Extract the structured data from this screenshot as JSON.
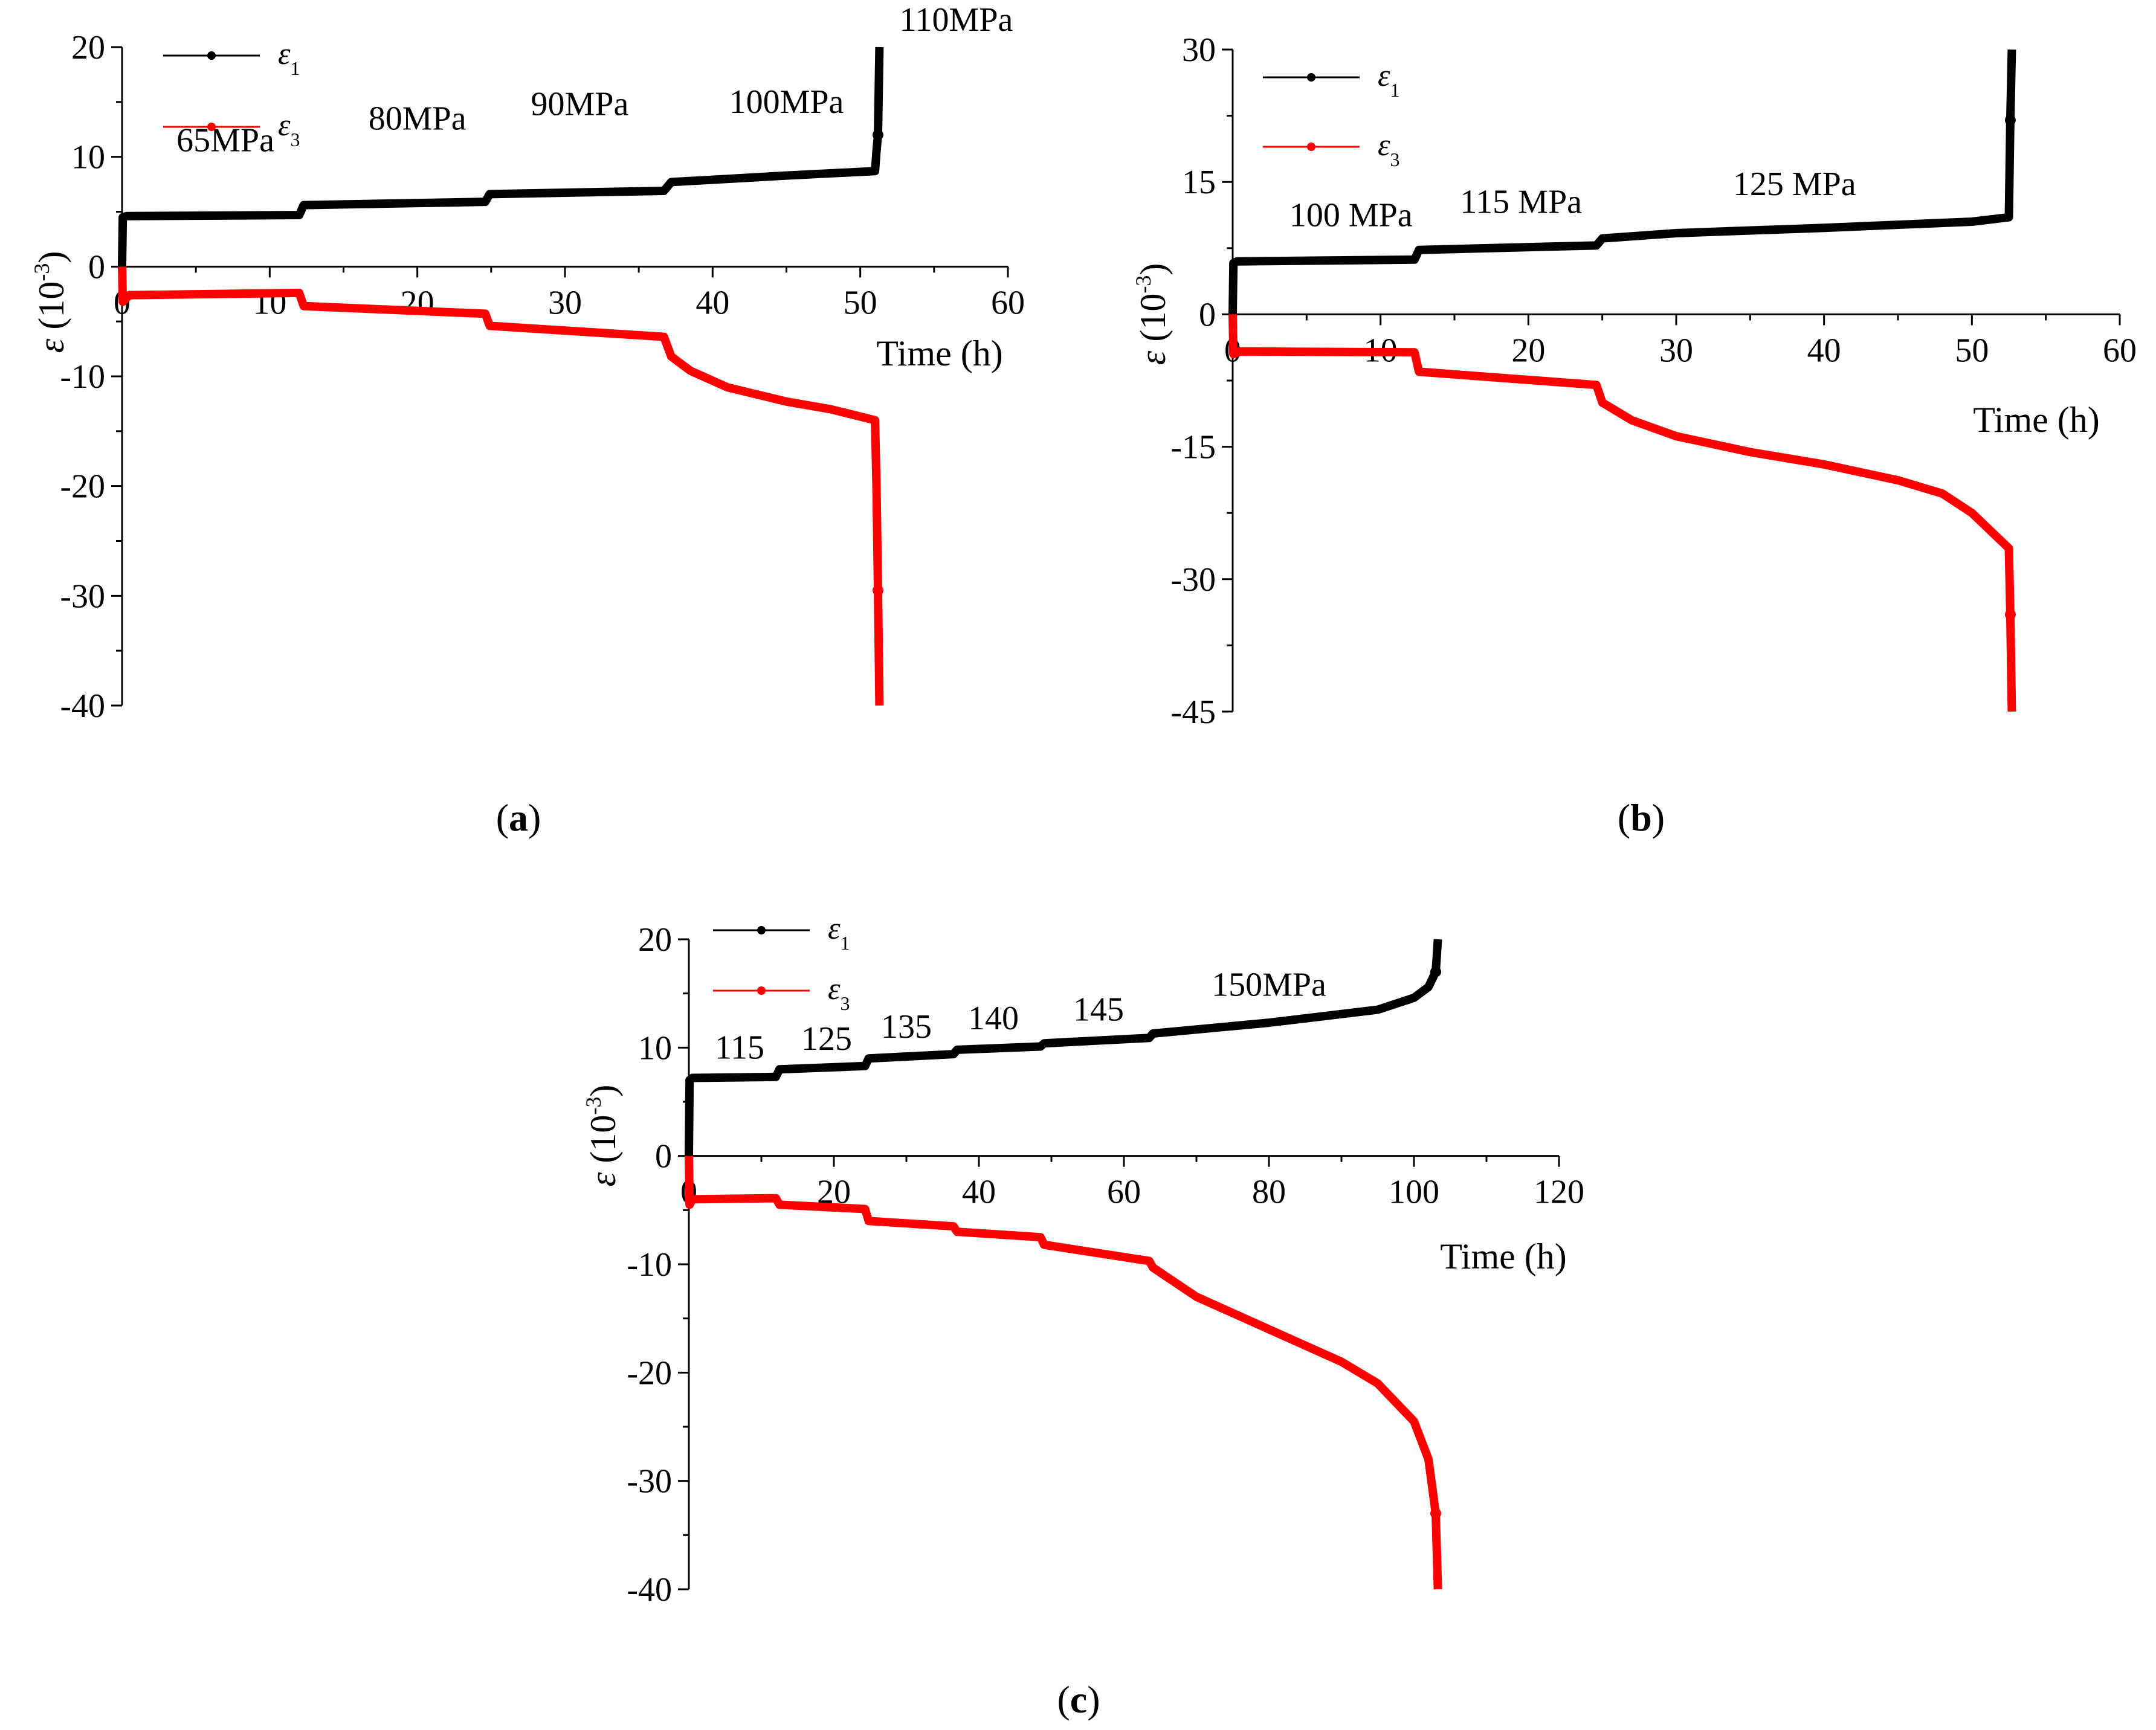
{
  "chart_data": [
    {
      "type": "line",
      "panel": "a",
      "caption_letter": "a",
      "xlabel": "Time (h)",
      "ylabel_symbol": "ε",
      "ylabel_unit_base": " (10",
      "ylabel_unit_exp": "-3",
      "ylabel_unit_close": ")",
      "xlim": [
        0,
        60
      ],
      "ylim": [
        -40,
        20
      ],
      "xticks": [
        0,
        10,
        20,
        30,
        40,
        50,
        60
      ],
      "yticks": [
        -40,
        -30,
        -20,
        -10,
        0,
        10,
        20
      ],
      "legend_position": "top-left",
      "annotations": [
        {
          "text": "65MPa",
          "x": 7,
          "y": 10.5
        },
        {
          "text": "80MPa",
          "x": 20,
          "y": 12.5
        },
        {
          "text": "90MPa",
          "x": 31,
          "y": 13.8
        },
        {
          "text": "100MPa",
          "x": 45,
          "y": 14.0
        },
        {
          "text": "110MPa",
          "x": 56.5,
          "y": 21.5
        }
      ],
      "series": [
        {
          "name": "ε",
          "subscript": "1",
          "color": "#000000",
          "x": [
            0,
            0.05,
            0.3,
            12,
            12.3,
            24.6,
            24.9,
            36.7,
            37.2,
            45,
            51,
            51.1,
            51.2,
            51.3
          ],
          "y": [
            0,
            4.5,
            4.6,
            4.7,
            5.6,
            5.9,
            6.6,
            6.9,
            7.7,
            8.3,
            8.7,
            10.5,
            12.0,
            20.0
          ]
        },
        {
          "name": "ε",
          "subscript": "3",
          "color": "#ff0000",
          "x": [
            0,
            0.05,
            0.5,
            12,
            12.3,
            24.6,
            24.9,
            36.7,
            37.2,
            38.5,
            41,
            45,
            48,
            51,
            51.1,
            51.2,
            51.3
          ],
          "y": [
            0,
            -3.2,
            -2.6,
            -2.4,
            -3.6,
            -4.3,
            -5.4,
            -6.4,
            -8.2,
            -9.5,
            -11.0,
            -12.3,
            -13.0,
            -14.0,
            -20.0,
            -29.5,
            -40.0
          ]
        }
      ]
    },
    {
      "type": "line",
      "panel": "b",
      "caption_letter": "b",
      "xlabel": "Time (h)",
      "ylabel_symbol": "ε",
      "ylabel_unit_base": " (10",
      "ylabel_unit_exp": "-3",
      "ylabel_unit_close": ")",
      "xlim": [
        0,
        60
      ],
      "ylim": [
        -45,
        30
      ],
      "xticks": [
        0,
        10,
        20,
        30,
        40,
        50,
        60
      ],
      "yticks": [
        -45,
        -30,
        -15,
        0,
        15,
        30
      ],
      "legend_position": "top-left",
      "annotations": [
        {
          "text": "100 MPa",
          "x": 8,
          "y": 10
        },
        {
          "text": "115 MPa",
          "x": 19.5,
          "y": 11.5
        },
        {
          "text": "125 MPa",
          "x": 38,
          "y": 13.5
        }
      ],
      "series": [
        {
          "name": "ε",
          "subscript": "1",
          "color": "#000000",
          "x": [
            0,
            0.05,
            0.3,
            12.3,
            12.6,
            24.6,
            25.0,
            30,
            40,
            50,
            52.5,
            52.6,
            52.7
          ],
          "y": [
            0,
            5.8,
            6.0,
            6.2,
            7.3,
            7.8,
            8.6,
            9.2,
            9.8,
            10.5,
            11.0,
            22.0,
            30.0
          ]
        },
        {
          "name": "ε",
          "subscript": "3",
          "color": "#ff0000",
          "x": [
            0,
            0.05,
            0.5,
            12.3,
            12.6,
            24.6,
            25.0,
            27,
            30,
            35,
            40,
            45,
            48,
            50,
            52.5,
            52.6,
            52.7
          ],
          "y": [
            0,
            -4.5,
            -4.2,
            -4.3,
            -6.5,
            -8.0,
            -10.0,
            -12.0,
            -13.8,
            -15.6,
            -17.0,
            -18.8,
            -20.3,
            -22.5,
            -26.5,
            -34.0,
            -45.0
          ]
        }
      ]
    },
    {
      "type": "line",
      "panel": "c",
      "caption_letter": "c",
      "xlabel": "Time (h)",
      "ylabel_symbol": "ε",
      "ylabel_unit_base": " (10",
      "ylabel_unit_exp": "-3",
      "ylabel_unit_close": ")",
      "xlim": [
        0,
        120
      ],
      "ylim": [
        -40,
        20
      ],
      "xticks": [
        0,
        20,
        40,
        60,
        80,
        100,
        120
      ],
      "yticks": [
        -40,
        -30,
        -20,
        -10,
        0,
        10,
        20
      ],
      "legend_position": "top-left",
      "annotations": [
        {
          "text": "115",
          "x": 7,
          "y": 9.0
        },
        {
          "text": "125",
          "x": 19,
          "y": 9.8
        },
        {
          "text": "135",
          "x": 30,
          "y": 10.9
        },
        {
          "text": "140",
          "x": 42,
          "y": 11.7
        },
        {
          "text": "145",
          "x": 56.5,
          "y": 12.5
        },
        {
          "text": "150MPa",
          "x": 80,
          "y": 14.8
        }
      ],
      "series": [
        {
          "name": "ε",
          "subscript": "1",
          "color": "#000000",
          "x": [
            0,
            0.1,
            0.5,
            12,
            12.5,
            24.3,
            24.8,
            36.5,
            37,
            48.5,
            49,
            63.5,
            64,
            80,
            95,
            100,
            102,
            103,
            103.3
          ],
          "y": [
            0,
            7.0,
            7.2,
            7.3,
            8.0,
            8.3,
            9.0,
            9.4,
            9.8,
            10.1,
            10.4,
            10.9,
            11.3,
            12.3,
            13.5,
            14.6,
            15.6,
            17.0,
            20.0
          ]
        },
        {
          "name": "ε",
          "subscript": "3",
          "color": "#ff0000",
          "x": [
            0,
            0.1,
            0.5,
            12,
            12.5,
            24.3,
            24.8,
            36.5,
            37,
            48.5,
            49,
            63.5,
            64,
            70,
            80,
            90,
            95,
            100,
            102,
            103,
            103.3
          ],
          "y": [
            0,
            -4.5,
            -4.0,
            -3.9,
            -4.5,
            -4.9,
            -6.0,
            -6.5,
            -7.0,
            -7.5,
            -8.2,
            -9.7,
            -10.3,
            -13.0,
            -16.0,
            -19.0,
            -21.0,
            -24.5,
            -28.0,
            -33.0,
            -40.0
          ]
        }
      ]
    }
  ]
}
